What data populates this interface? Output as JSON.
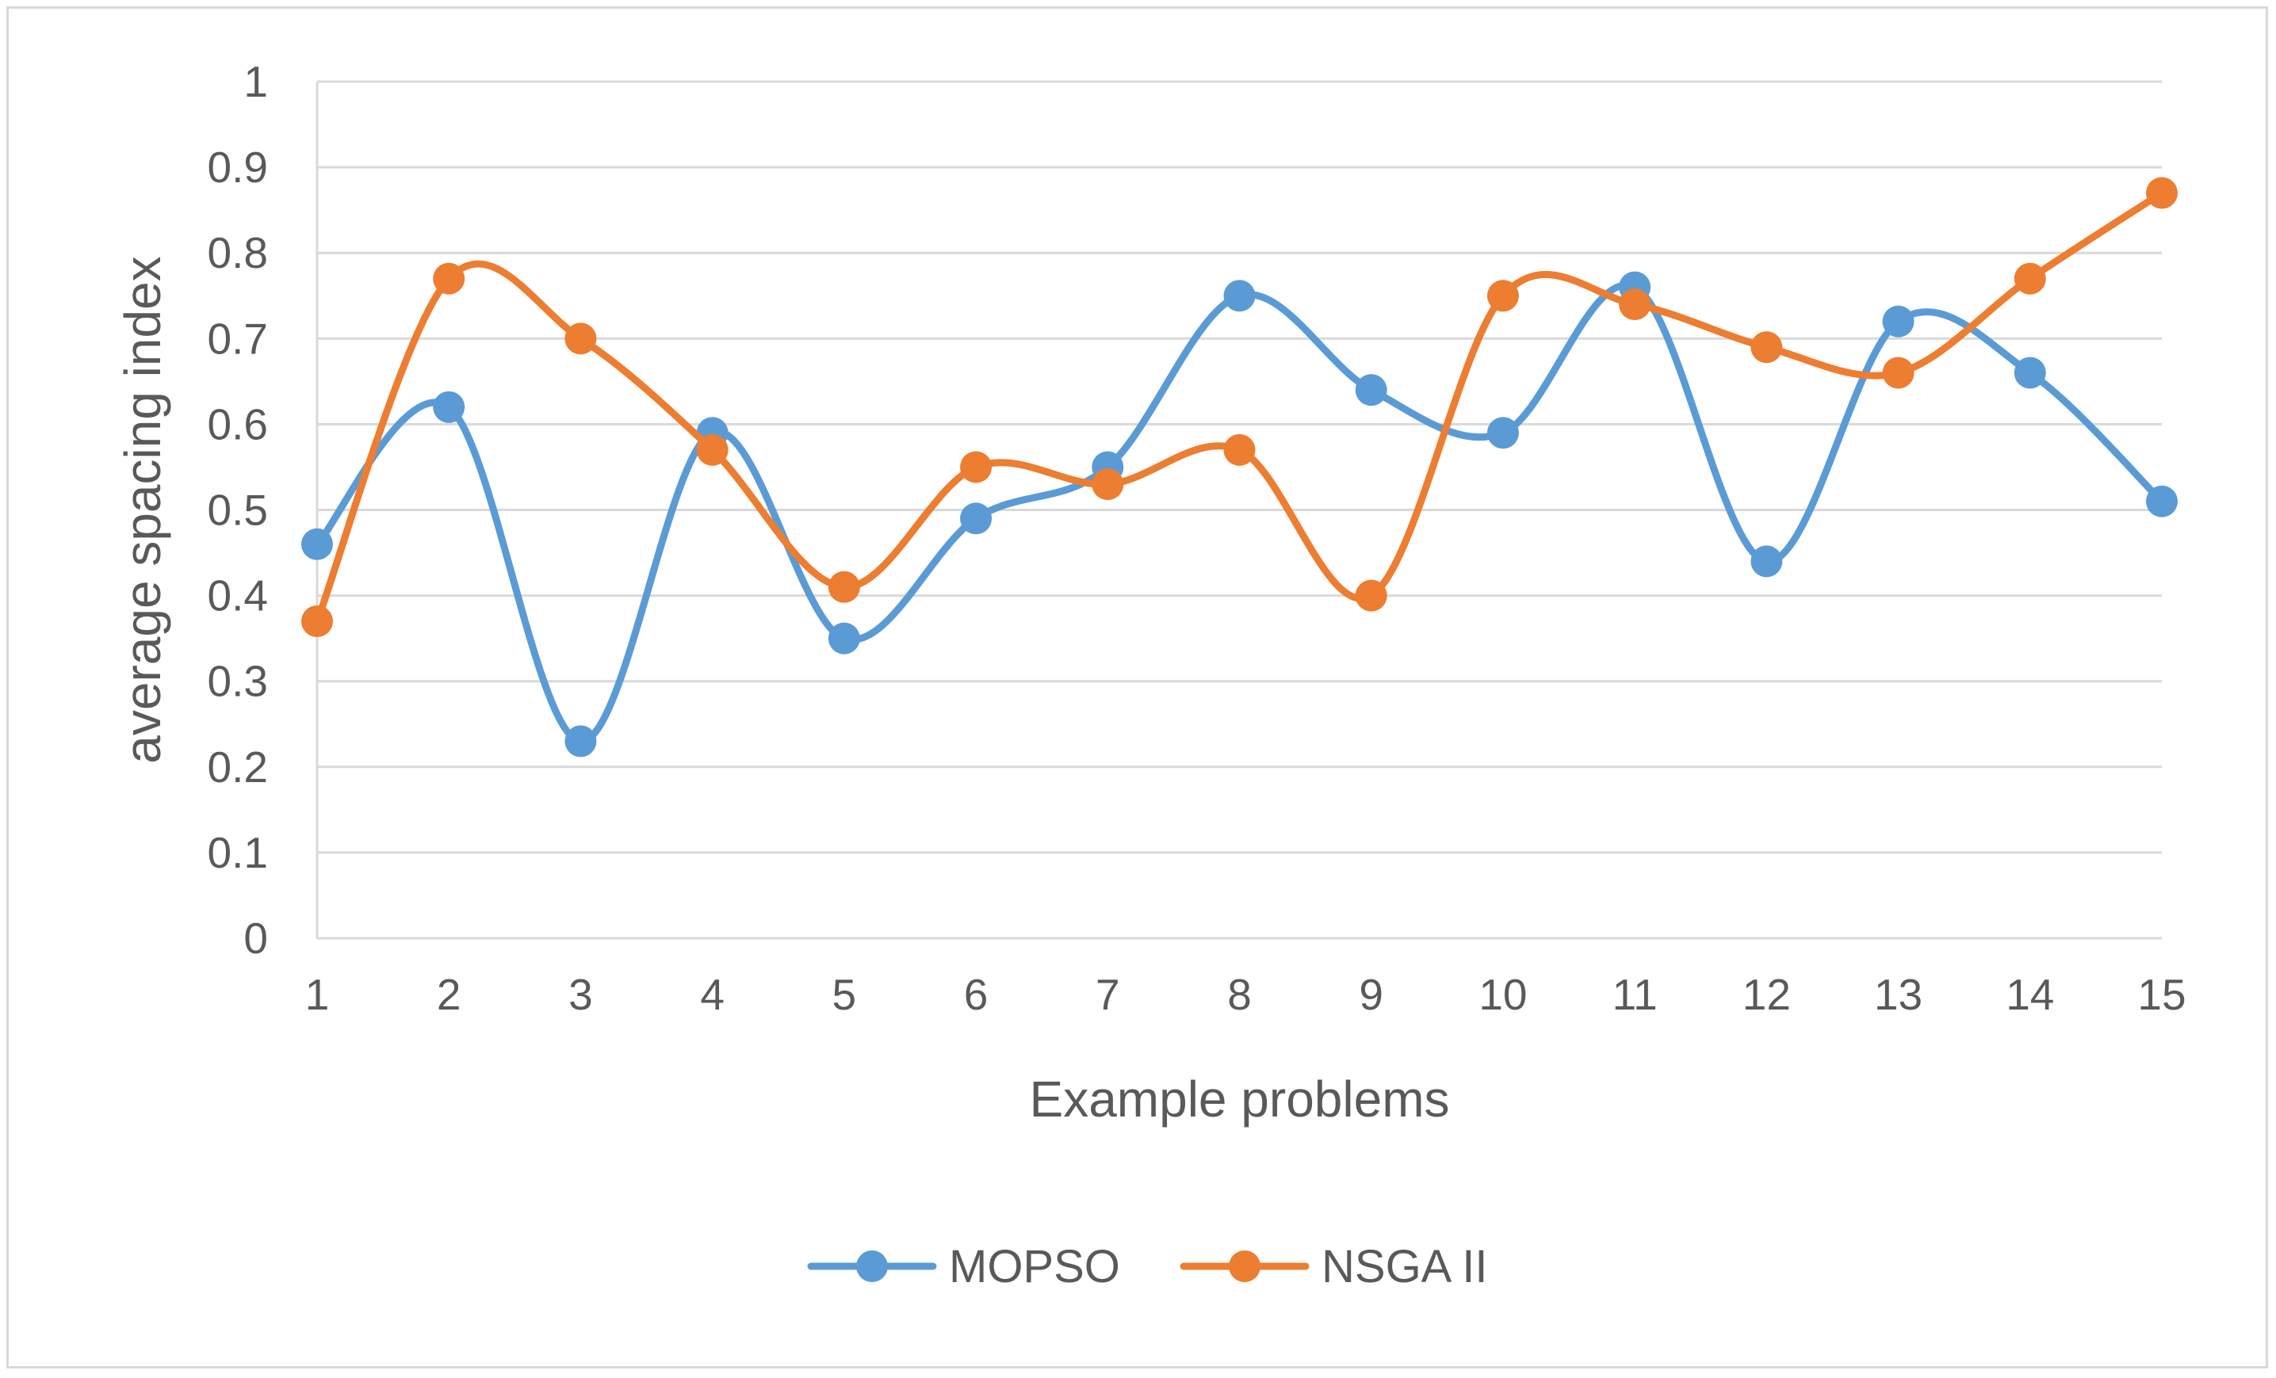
{
  "chart_data": {
    "type": "line",
    "title": "",
    "xlabel": "Example problems",
    "ylabel": "average spacing index",
    "x": [
      1,
      2,
      3,
      4,
      5,
      6,
      7,
      8,
      9,
      10,
      11,
      12,
      13,
      14,
      15
    ],
    "ylim": [
      0,
      1
    ],
    "yticks": [
      0,
      0.1,
      0.2,
      0.3,
      0.4,
      0.5,
      0.6,
      0.7,
      0.8,
      0.9,
      1
    ],
    "ytick_labels": [
      "0",
      "0.1",
      "0.2",
      "0.3",
      "0.4",
      "0.5",
      "0.6",
      "0.7",
      "0.8",
      "0.9",
      "1"
    ],
    "grid": true,
    "smooth": true,
    "legend_position": "bottom",
    "series": [
      {
        "name": "MOPSO",
        "color": "#5b9bd5",
        "values": [
          0.46,
          0.62,
          0.23,
          0.59,
          0.35,
          0.49,
          0.55,
          0.75,
          0.64,
          0.59,
          0.76,
          0.44,
          0.72,
          0.66,
          0.51
        ]
      },
      {
        "name": "NSGA II",
        "color": "#ed7d31",
        "values": [
          0.37,
          0.77,
          0.7,
          0.57,
          0.41,
          0.55,
          0.53,
          0.57,
          0.4,
          0.75,
          0.74,
          0.69,
          0.66,
          0.77,
          0.87
        ]
      }
    ]
  }
}
